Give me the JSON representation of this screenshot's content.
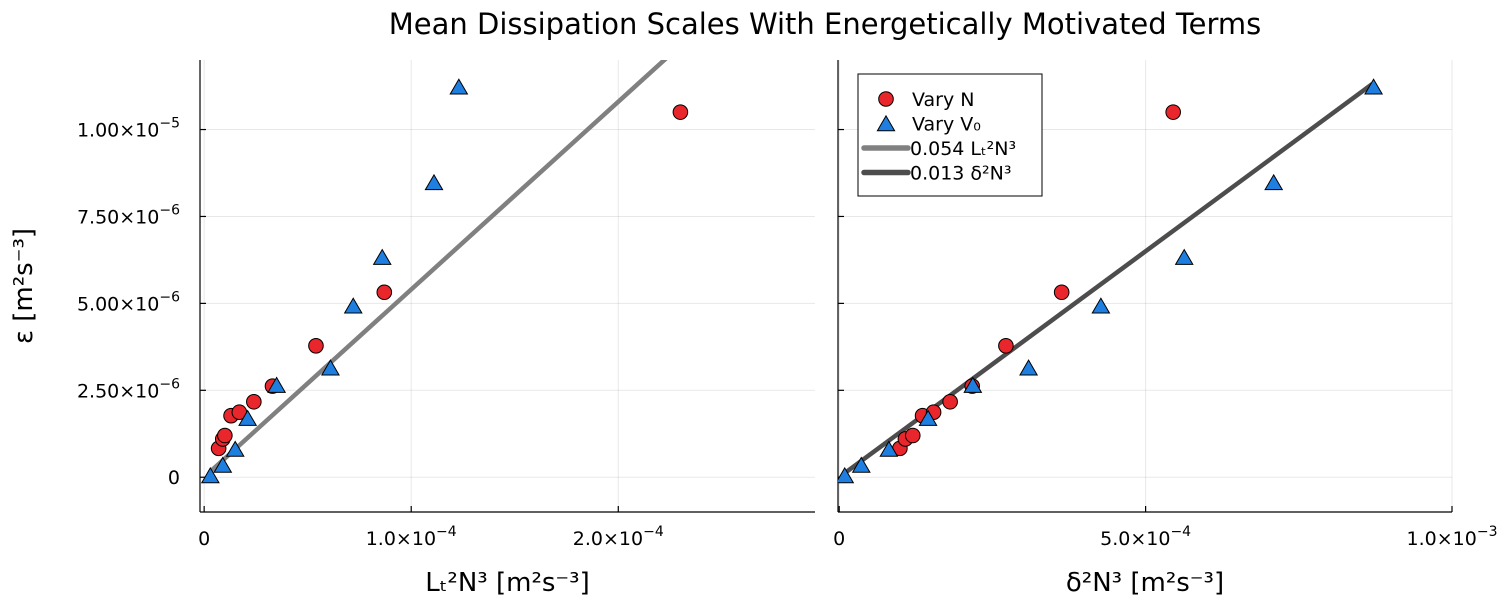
{
  "chart_data": {
    "title": "Mean Dissipation Scales With Energetically Motivated Terms",
    "ylabel": "ε [m²s⁻³]",
    "y_ticks": [
      {
        "value": 0,
        "mantissa": "0",
        "exp": ""
      },
      {
        "value": 2.5e-06,
        "mantissa": "2.50×10",
        "exp": "−6"
      },
      {
        "value": 5e-06,
        "mantissa": "5.00×10",
        "exp": "−6"
      },
      {
        "value": 7.5e-06,
        "mantissa": "7.50×10",
        "exp": "−6"
      },
      {
        "value": 1e-05,
        "mantissa": "1.00×10",
        "exp": "−5"
      }
    ],
    "ylim": [
      -1e-06,
      1.2e-05
    ],
    "legend": {
      "position": "top-left",
      "entries": [
        {
          "label": "Vary N",
          "kind": "circle",
          "color": "#e8262b"
        },
        {
          "label": "Vary V₀",
          "kind": "triangle",
          "color": "#1e7fe0"
        },
        {
          "label": "0.054 Lₜ²N³",
          "kind": "line",
          "color": "#808080"
        },
        {
          "label": "0.013 δ²N³",
          "kind": "line",
          "color": "#4d4d4d"
        }
      ]
    },
    "panels": [
      {
        "type": "scatter",
        "xlabel": "Lₜ²N³ [m²s⁻³]",
        "xlim": [
          -2e-06,
          0.000295
        ],
        "x_ticks": [
          {
            "value": 0,
            "mantissa": "0",
            "exp": ""
          },
          {
            "value": 0.0001,
            "mantissa": "1.0×10",
            "exp": "−4"
          },
          {
            "value": 0.0002,
            "mantissa": "2.0×10",
            "exp": "−4"
          }
        ],
        "fit": {
          "slope": 0.054,
          "x_range": [
            3e-06,
            0.000295
          ],
          "color": "#808080"
        },
        "series": [
          {
            "name": "Vary N",
            "marker": "circle",
            "color": "#e8262b",
            "points": [
              [
                7e-06,
                8.3e-07
              ],
              [
                9e-06,
                1.1e-06
              ],
              [
                1e-05,
                1.2e-06
              ],
              [
                1.3e-05,
                1.77e-06
              ],
              [
                1.7e-05,
                1.87e-06
              ],
              [
                2.4e-05,
                2.17e-06
              ],
              [
                3.3e-05,
                2.62e-06
              ],
              [
                5.4e-05,
                3.78e-06
              ],
              [
                8.7e-05,
                5.32e-06
              ],
              [
                0.00023,
                1.05e-05
              ]
            ]
          },
          {
            "name": "Vary V₀",
            "marker": "triangle",
            "color": "#1e7fe0",
            "points": [
              [
                3e-06,
                2e-08
              ],
              [
                9e-06,
                3.2e-07
              ],
              [
                1.5e-05,
                7.8e-07
              ],
              [
                2.1e-05,
                1.67e-06
              ],
              [
                3.5e-05,
                2.62e-06
              ],
              [
                6.1e-05,
                3.12e-06
              ],
              [
                7.2e-05,
                4.9e-06
              ],
              [
                8.6e-05,
                6.3e-06
              ],
              [
                0.000111,
                8.45e-06
              ],
              [
                0.000123,
                1.12e-05
              ]
            ]
          }
        ]
      },
      {
        "type": "scatter",
        "xlabel": "δ²N³ [m²s⁻³]",
        "xlim": [
          -2e-06,
          0.001
        ],
        "x_ticks": [
          {
            "value": 0,
            "mantissa": "0",
            "exp": ""
          },
          {
            "value": 0.0005,
            "mantissa": "5.0×10",
            "exp": "−4"
          },
          {
            "value": 0.001,
            "mantissa": "1.0×10",
            "exp": "−3"
          }
        ],
        "fit": {
          "slope": 0.013,
          "x_range": [
            8e-06,
            0.00087
          ],
          "color": "#4d4d4d"
        },
        "series": [
          {
            "name": "Vary N",
            "marker": "circle",
            "color": "#e8262b",
            "points": [
              [
                9.9e-05,
                8.3e-07
              ],
              [
                0.000108,
                1.1e-06
              ],
              [
                0.00012,
                1.2e-06
              ],
              [
                0.000136,
                1.77e-06
              ],
              [
                0.000154,
                1.87e-06
              ],
              [
                0.000181,
                2.17e-06
              ],
              [
                0.000217,
                2.62e-06
              ],
              [
                0.000272,
                3.78e-06
              ],
              [
                0.000363,
                5.32e-06
              ],
              [
                0.000545,
                1.05e-05
              ]
            ]
          },
          {
            "name": "Vary V₀",
            "marker": "triangle",
            "color": "#1e7fe0",
            "points": [
              [
                9e-06,
                2e-08
              ],
              [
                3.6e-05,
                3.2e-07
              ],
              [
                8.1e-05,
                7.8e-07
              ],
              [
                0.000145,
                1.67e-06
              ],
              [
                0.000218,
                2.62e-06
              ],
              [
                0.000309,
                3.12e-06
              ],
              [
                0.000427,
                4.9e-06
              ],
              [
                0.000563,
                6.3e-06
              ],
              [
                0.000709,
                8.45e-06
              ],
              [
                0.000872,
                1.12e-05
              ]
            ]
          }
        ]
      }
    ]
  }
}
